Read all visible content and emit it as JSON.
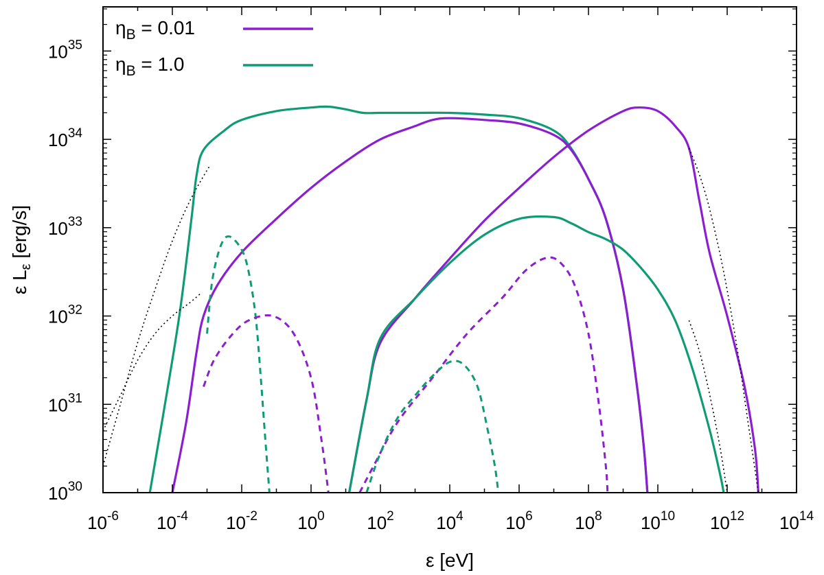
{
  "chart_data": {
    "type": "line",
    "x_scale": "log",
    "y_scale": "log",
    "xlabel": {
      "base": "ε",
      "rest": " [eV]"
    },
    "ylabel": {
      "base": "ε L",
      "sub": "ε",
      "rest": " [erg/s]"
    },
    "xlim_exp": [
      -6,
      14
    ],
    "ylim_exp": [
      30,
      35.5
    ],
    "x_tick_exponents": [
      -6,
      -4,
      -2,
      0,
      2,
      4,
      6,
      8,
      10,
      12,
      14
    ],
    "y_tick_exponents": [
      30,
      31,
      32,
      33,
      34,
      35
    ],
    "tick_base": "10",
    "legend": {
      "position": "top-left",
      "entries": [
        {
          "sym": "η",
          "sub": "B",
          "rest": " = 0.01",
          "color": "#8b1fcf"
        },
        {
          "sym": "η",
          "sub": "B",
          "rest": " = 1.0",
          "color": "#0f9b74"
        }
      ]
    },
    "colors": {
      "purple": "#8b1fcf",
      "green": "#0f9b74",
      "dotted": "#000000"
    },
    "series": [
      {
        "id": "green_synchrotron_total",
        "color": "green",
        "style": "solid",
        "points": [
          [
            -4.65,
            30
          ],
          [
            -4.3,
            30.8
          ],
          [
            -3.8,
            32
          ],
          [
            -3.45,
            33.1
          ],
          [
            -3.3,
            33.6
          ],
          [
            -3.1,
            33.88
          ],
          [
            -2.5,
            34.1
          ],
          [
            -2,
            34.22
          ],
          [
            -1,
            34.32
          ],
          [
            0,
            34.36
          ],
          [
            0.5,
            34.37
          ],
          [
            1,
            34.34
          ],
          [
            1.5,
            34.3
          ],
          [
            2,
            34.3
          ],
          [
            3,
            34.3
          ],
          [
            4,
            34.3
          ],
          [
            5,
            34.28
          ],
          [
            6,
            34.24
          ],
          [
            7,
            34.1
          ],
          [
            7.5,
            33.9
          ],
          [
            8,
            33.55
          ],
          [
            8.5,
            33.1
          ],
          [
            9,
            32.3
          ],
          [
            9.4,
            31.2
          ],
          [
            9.6,
            30.5
          ],
          [
            9.7,
            30
          ]
        ]
      },
      {
        "id": "purple_synchrotron_total",
        "color": "purple",
        "style": "solid",
        "points": [
          [
            -4.0,
            30
          ],
          [
            -3.6,
            30.8
          ],
          [
            -3.3,
            31.6
          ],
          [
            -3.1,
            32
          ],
          [
            -2.7,
            32.35
          ],
          [
            -2,
            32.72
          ],
          [
            -1,
            33.1
          ],
          [
            0,
            33.45
          ],
          [
            1,
            33.75
          ],
          [
            2,
            34.0
          ],
          [
            3,
            34.15
          ],
          [
            3.5,
            34.22
          ],
          [
            4,
            34.24
          ],
          [
            5,
            34.22
          ],
          [
            6,
            34.18
          ],
          [
            7,
            34.05
          ],
          [
            7.5,
            33.88
          ],
          [
            8,
            33.55
          ],
          [
            8.5,
            33.1
          ],
          [
            9,
            32.3
          ],
          [
            9.4,
            31.2
          ],
          [
            9.6,
            30.5
          ],
          [
            9.7,
            30
          ]
        ]
      },
      {
        "id": "purple_ic_total",
        "color": "purple",
        "style": "solid",
        "points": [
          [
            1.1,
            30
          ],
          [
            1.6,
            31.05
          ],
          [
            2,
            31.7
          ],
          [
            3,
            32.2
          ],
          [
            4,
            32.65
          ],
          [
            5,
            33.08
          ],
          [
            6,
            33.45
          ],
          [
            7,
            33.8
          ],
          [
            8,
            34.1
          ],
          [
            9,
            34.32
          ],
          [
            9.5,
            34.36
          ],
          [
            10,
            34.32
          ],
          [
            10.5,
            34.15
          ],
          [
            10.9,
            33.9
          ],
          [
            11.2,
            33.3
          ],
          [
            11.5,
            32.7
          ],
          [
            12,
            32.0
          ],
          [
            12.5,
            31.2
          ],
          [
            12.8,
            30.5
          ],
          [
            12.9,
            30
          ]
        ]
      },
      {
        "id": "green_ic_total",
        "color": "green",
        "style": "solid",
        "points": [
          [
            1.1,
            30
          ],
          [
            1.6,
            31.05
          ],
          [
            2,
            31.75
          ],
          [
            3,
            32.2
          ],
          [
            4,
            32.6
          ],
          [
            5,
            32.92
          ],
          [
            6,
            33.1
          ],
          [
            7,
            33.12
          ],
          [
            7.5,
            33.05
          ],
          [
            8,
            32.95
          ],
          [
            8.5,
            32.87
          ],
          [
            9,
            32.75
          ],
          [
            9.5,
            32.55
          ],
          [
            10,
            32.3
          ],
          [
            10.5,
            31.95
          ],
          [
            11,
            31.4
          ],
          [
            11.5,
            30.7
          ],
          [
            11.8,
            30.2
          ],
          [
            11.9,
            30
          ]
        ]
      },
      {
        "id": "green_synchrotron_component",
        "color": "green",
        "style": "dashed",
        "points": [
          [
            -3.0,
            31.8
          ],
          [
            -2.85,
            32.4
          ],
          [
            -2.6,
            32.8
          ],
          [
            -2.35,
            32.9
          ],
          [
            -2,
            32.75
          ],
          [
            -1.8,
            32.5
          ],
          [
            -1.6,
            32.0
          ],
          [
            -1.45,
            31.3
          ],
          [
            -1.3,
            30.5
          ],
          [
            -1.2,
            30
          ]
        ]
      },
      {
        "id": "purple_synchrotron_component",
        "color": "purple",
        "style": "dashed",
        "points": [
          [
            -3.1,
            31.2
          ],
          [
            -2.8,
            31.5
          ],
          [
            -2.3,
            31.78
          ],
          [
            -1.8,
            31.95
          ],
          [
            -1.1,
            32.0
          ],
          [
            -0.5,
            31.8
          ],
          [
            0,
            31.3
          ],
          [
            0.3,
            30.6
          ],
          [
            0.5,
            30
          ]
        ]
      },
      {
        "id": "purple_ic_component",
        "color": "purple",
        "style": "dashed",
        "points": [
          [
            1.4,
            30
          ],
          [
            1.8,
            30.3
          ],
          [
            2.5,
            30.8
          ],
          [
            3.5,
            31.3
          ],
          [
            4.5,
            31.8
          ],
          [
            5.5,
            32.2
          ],
          [
            6.2,
            32.52
          ],
          [
            6.8,
            32.66
          ],
          [
            7.2,
            32.6
          ],
          [
            7.6,
            32.35
          ],
          [
            8,
            31.8
          ],
          [
            8.3,
            31.0
          ],
          [
            8.5,
            30.3
          ],
          [
            8.55,
            30
          ]
        ]
      },
      {
        "id": "green_ic_component",
        "color": "green",
        "style": "dashed",
        "points": [
          [
            1.6,
            30
          ],
          [
            2,
            30.45
          ],
          [
            2.5,
            30.85
          ],
          [
            3,
            31.1
          ],
          [
            3.5,
            31.32
          ],
          [
            4,
            31.48
          ],
          [
            4.4,
            31.45
          ],
          [
            4.8,
            31.2
          ],
          [
            5.1,
            30.7
          ],
          [
            5.3,
            30.3
          ],
          [
            5.4,
            30
          ]
        ]
      },
      {
        "id": "dotted_low_energy_upper",
        "color": "dotted",
        "style": "dotted",
        "points": [
          [
            -6,
            30.3
          ],
          [
            -5.5,
            31.0
          ],
          [
            -5,
            31.7
          ],
          [
            -4.5,
            32.3
          ],
          [
            -4,
            32.85
          ],
          [
            -3.5,
            33.3
          ],
          [
            -3,
            33.65
          ],
          [
            -2.9,
            33.7
          ]
        ]
      },
      {
        "id": "dotted_low_energy_lower",
        "color": "dotted",
        "style": "dotted",
        "points": [
          [
            -6,
            30.7
          ],
          [
            -5.5,
            31.1
          ],
          [
            -5,
            31.5
          ],
          [
            -4.5,
            31.8
          ],
          [
            -4,
            32.0
          ],
          [
            -3.5,
            32.15
          ],
          [
            -3.2,
            32.25
          ]
        ]
      },
      {
        "id": "dotted_high_energy_upper",
        "color": "dotted",
        "style": "dotted",
        "points": [
          [
            10.9,
            33.9
          ],
          [
            11.2,
            33.6
          ],
          [
            11.5,
            33.2
          ],
          [
            11.9,
            32.5
          ],
          [
            12.3,
            31.6
          ],
          [
            12.6,
            30.8
          ],
          [
            12.9,
            30
          ]
        ]
      },
      {
        "id": "dotted_high_energy_lower",
        "color": "dotted",
        "style": "dotted",
        "points": [
          [
            10.9,
            31.95
          ],
          [
            11.2,
            31.6
          ],
          [
            11.5,
            31.1
          ],
          [
            11.8,
            30.5
          ],
          [
            12.0,
            30
          ]
        ]
      }
    ]
  }
}
